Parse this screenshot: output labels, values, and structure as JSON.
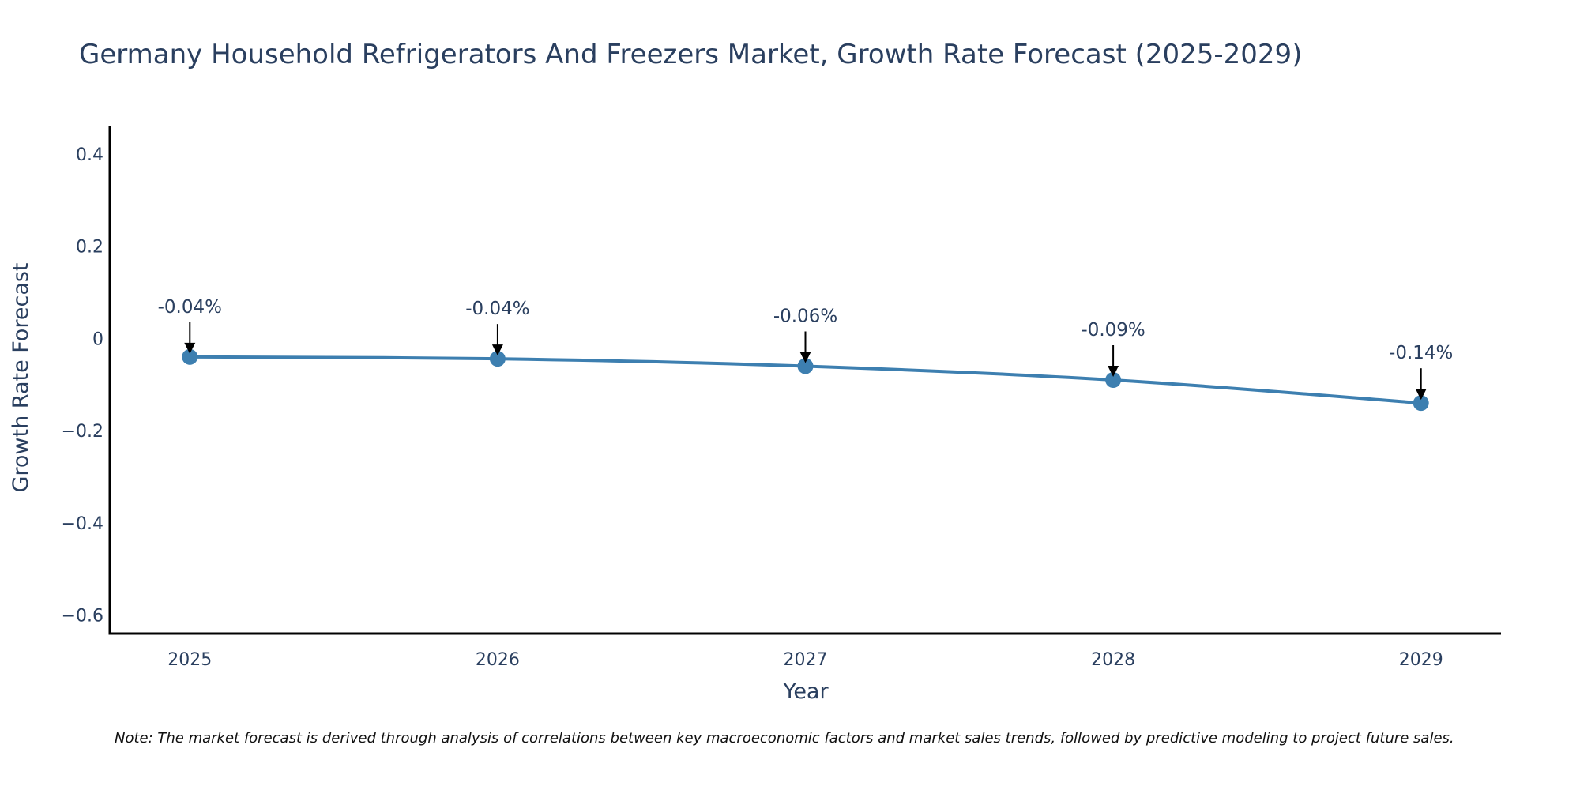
{
  "chart_data": {
    "type": "line",
    "title": "Germany Household Refrigerators And Freezers Market, Growth Rate Forecast (2025-2029)",
    "xlabel": "Year",
    "ylabel": "Growth Rate Forecast",
    "x": [
      "2025",
      "2026",
      "2027",
      "2028",
      "2029"
    ],
    "series": [
      {
        "name": "Growth Rate Forecast",
        "values": [
          -0.04,
          -0.044,
          -0.06,
          -0.09,
          -0.14
        ],
        "labels": [
          "-0.04%",
          "-0.04%",
          "-0.06%",
          "-0.09%",
          "-0.14%"
        ],
        "color": "#3d7fb0"
      }
    ],
    "ylim": [
      -0.64,
      0.46
    ],
    "yticks": [
      0.4,
      0.2,
      0,
      -0.2,
      -0.4,
      -0.6
    ],
    "ytick_labels": [
      "0.4",
      "0.2",
      "0",
      "−0.2",
      "−0.4",
      "−0.6"
    ],
    "xlim": [
      2024.74,
      2029.26
    ],
    "grid": false,
    "legend": "none",
    "note": "Note: The market forecast is derived through analysis of correlations between key macroeconomic factors and market sales trends, followed by predictive modeling to project future sales."
  },
  "colors": {
    "line": "#3d7fb0",
    "text": "#2a3f5f",
    "axis": "#000000",
    "arrow": "#000000"
  }
}
